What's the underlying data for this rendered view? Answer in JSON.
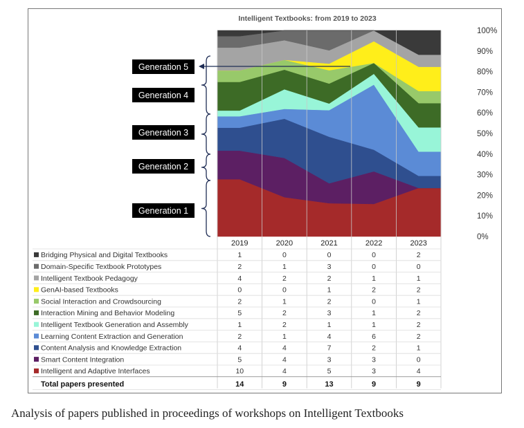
{
  "caption": "Analysis of papers published in proceedings of workshops on Intelligent Textbooks",
  "chart_data": {
    "type": "area",
    "stacking": "percent",
    "title": "Intelligent Textbooks: from 2019 to 2023",
    "categories": [
      "2019",
      "2020",
      "2021",
      "2022",
      "2023"
    ],
    "y_ticks": [
      "0%",
      "10%",
      "20%",
      "30%",
      "40%",
      "50%",
      "60%",
      "70%",
      "80%",
      "90%",
      "100%"
    ],
    "ylim": [
      0,
      100
    ],
    "series": [
      {
        "name": "Intelligent and Adaptive Interfaces",
        "color": "#a52a2a",
        "values": [
          10,
          4,
          5,
          3,
          4
        ]
      },
      {
        "name": "Smart Content Integration",
        "color": "#5c1f63",
        "values": [
          5,
          4,
          3,
          3,
          0
        ]
      },
      {
        "name": "Content Analysis and Knowledge Extraction",
        "color": "#2f4f8f",
        "values": [
          4,
          4,
          7,
          2,
          1
        ]
      },
      {
        "name": "Learning Content Extraction and Generation",
        "color": "#5b8bd6",
        "values": [
          2,
          1,
          4,
          6,
          2
        ]
      },
      {
        "name": "Intelligent Textbook Generation and Assembly",
        "color": "#98f5d8",
        "values": [
          1,
          2,
          1,
          1,
          2
        ]
      },
      {
        "name": "Interaction Mining and Behavior Modeling",
        "color": "#3d6b26",
        "values": [
          5,
          2,
          3,
          1,
          2
        ]
      },
      {
        "name": "Social Interaction and Crowdsourcing",
        "color": "#98c96a",
        "values": [
          2,
          1,
          2,
          0,
          1
        ]
      },
      {
        "name": "GenAI-based Textbooks",
        "color": "#ffee1a",
        "values": [
          0,
          0,
          1,
          2,
          2
        ]
      },
      {
        "name": "Intelligent Textbook Pedagogy",
        "color": "#a4a4a4",
        "values": [
          4,
          2,
          2,
          1,
          1
        ]
      },
      {
        "name": "Domain-Specific Textbook Prototypes",
        "color": "#6b6b6b",
        "values": [
          2,
          1,
          3,
          0,
          0
        ]
      },
      {
        "name": "Bridging Physical and Digital Textbooks",
        "color": "#3a3a3a",
        "values": [
          1,
          0,
          0,
          0,
          2
        ]
      }
    ],
    "totals_label": "Total papers presented",
    "totals": [
      14,
      9,
      13,
      9,
      9
    ],
    "generations": [
      {
        "label": "Generation 5",
        "marker": "arrow"
      },
      {
        "label": "Generation 4",
        "marker": "brace"
      },
      {
        "label": "Generation 3",
        "marker": "brace"
      },
      {
        "label": "Generation 2",
        "marker": "brace"
      },
      {
        "label": "Generation 1",
        "marker": "brace"
      }
    ]
  }
}
